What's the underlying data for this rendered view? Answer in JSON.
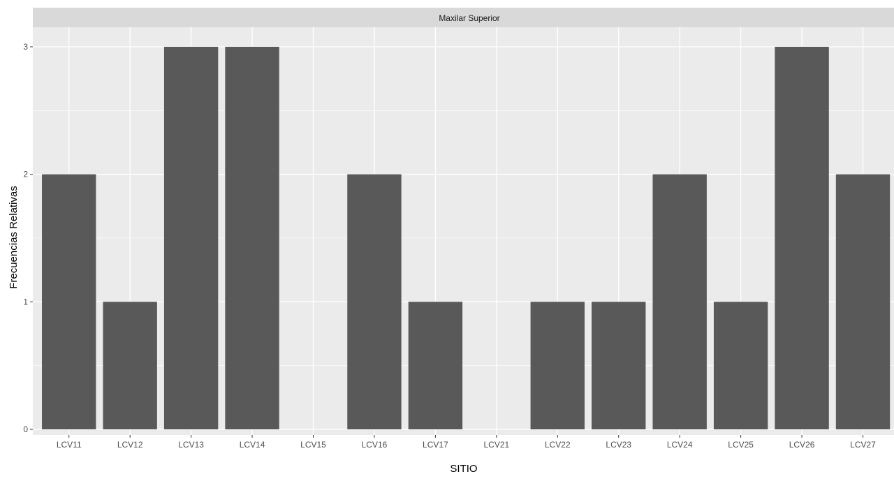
{
  "chart_data": {
    "type": "bar",
    "title": "",
    "facet_label": "Maxilar Superior",
    "xlabel": "SITIO",
    "ylabel": "Frecuencias Relativas",
    "categories": [
      "LCV11",
      "LCV12",
      "LCV13",
      "LCV14",
      "LCV15",
      "LCV16",
      "LCV17",
      "LCV21",
      "LCV22",
      "LCV23",
      "LCV24",
      "LCV25",
      "LCV26",
      "LCV27"
    ],
    "values": [
      2,
      1,
      3,
      3,
      0,
      2,
      1,
      0,
      1,
      1,
      2,
      1,
      3,
      2
    ],
    "ylim": [
      0,
      3.27
    ],
    "yticks": [
      0,
      1,
      2,
      3
    ],
    "grid": true,
    "colors": {
      "bar": "#595959",
      "panel": "#ebebeb",
      "strip": "#d9d9d9",
      "grid": "#ffffff"
    }
  }
}
